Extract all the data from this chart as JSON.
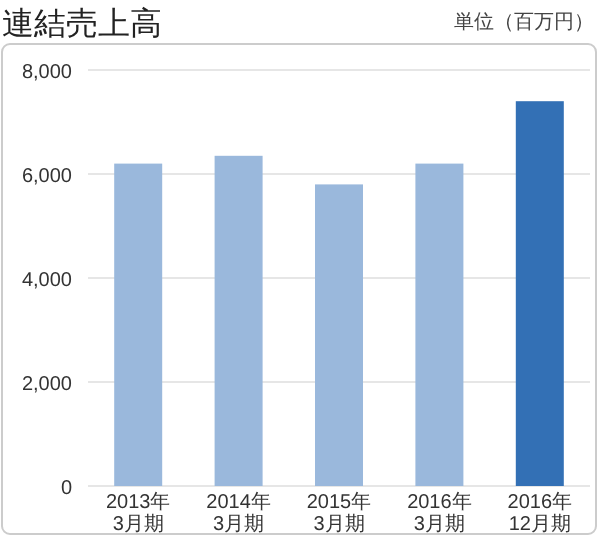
{
  "chart_data": {
    "type": "bar",
    "title": "連結売上高",
    "annotations": [
      "単位（百万円）"
    ],
    "categories": [
      "2013年\n3月期",
      "2014年\n3月期",
      "2015年\n3月期",
      "2016年\n3月期",
      "2016年\n12月期"
    ],
    "values": [
      6200,
      6350,
      5800,
      6200,
      7400
    ],
    "colors": [
      "#9ab8dc",
      "#9ab8dc",
      "#9ab8dc",
      "#9ab8dc",
      "#3370b5"
    ],
    "ylim": [
      0,
      8000
    ],
    "yticks": [
      {
        "value": 0,
        "label": "0"
      },
      {
        "value": 2000,
        "label": "2,000"
      },
      {
        "value": 4000,
        "label": "4,000"
      },
      {
        "value": 6000,
        "label": "6,000"
      },
      {
        "value": 8000,
        "label": "8,000"
      }
    ],
    "grid": "y"
  }
}
